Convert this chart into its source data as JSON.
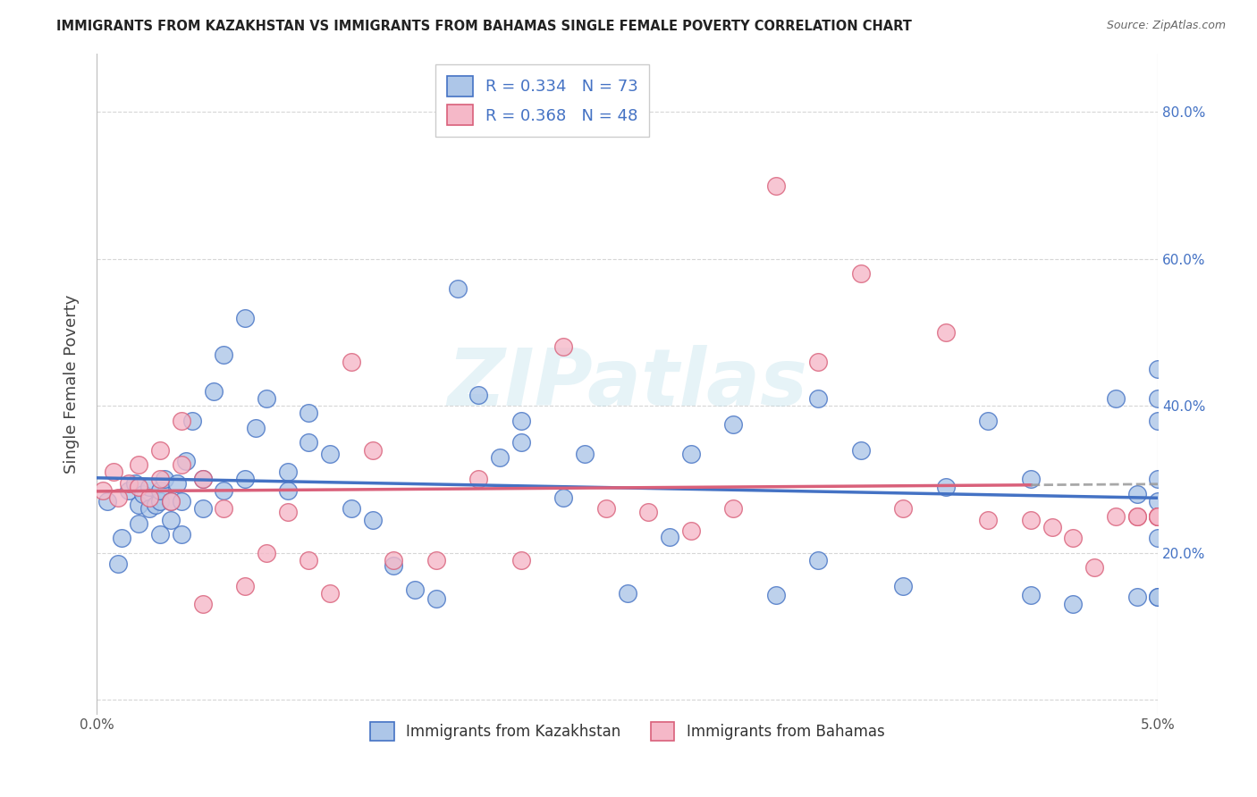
{
  "title": "IMMIGRANTS FROM KAZAKHSTAN VS IMMIGRANTS FROM BAHAMAS SINGLE FEMALE POVERTY CORRELATION CHART",
  "source": "Source: ZipAtlas.com",
  "ylabel": "Single Female Poverty",
  "legend1_label": "Immigrants from Kazakhstan",
  "legend2_label": "Immigrants from Bahamas",
  "R1": "0.334",
  "N1": "73",
  "R2": "0.368",
  "N2": "48",
  "color1": "#adc6e8",
  "color1_edge": "#4472c4",
  "color2": "#f5b8c8",
  "color2_edge": "#d9607a",
  "line1_color": "#4472c4",
  "line2_color": "#d9607a",
  "watermark": "ZIPatlas",
  "xlim": [
    0.0,
    0.05
  ],
  "ylim": [
    -0.02,
    0.88
  ],
  "y_ticks": [
    0.0,
    0.2,
    0.4,
    0.6,
    0.8
  ],
  "y_tick_labels_right": [
    "",
    "20.0%",
    "40.0%",
    "60.0%",
    "80.0%"
  ],
  "x_tick_labels": [
    "0.0%",
    "5.0%"
  ],
  "kazakhstan_x": [
    0.0005,
    0.001,
    0.0012,
    0.0015,
    0.0018,
    0.002,
    0.002,
    0.0022,
    0.0025,
    0.0025,
    0.0028,
    0.003,
    0.003,
    0.003,
    0.0032,
    0.0035,
    0.0035,
    0.0038,
    0.004,
    0.004,
    0.0042,
    0.0045,
    0.005,
    0.005,
    0.0055,
    0.006,
    0.006,
    0.007,
    0.007,
    0.0075,
    0.008,
    0.009,
    0.009,
    0.01,
    0.01,
    0.011,
    0.012,
    0.013,
    0.014,
    0.015,
    0.016,
    0.017,
    0.018,
    0.019,
    0.02,
    0.02,
    0.022,
    0.023,
    0.025,
    0.027,
    0.028,
    0.03,
    0.032,
    0.034,
    0.034,
    0.036,
    0.038,
    0.04,
    0.042,
    0.044,
    0.044,
    0.046,
    0.048,
    0.049,
    0.049,
    0.05,
    0.05,
    0.05,
    0.05,
    0.05,
    0.05,
    0.05,
    0.05
  ],
  "kazakhstan_y": [
    0.27,
    0.185,
    0.22,
    0.285,
    0.295,
    0.24,
    0.265,
    0.28,
    0.26,
    0.29,
    0.265,
    0.225,
    0.27,
    0.285,
    0.3,
    0.245,
    0.27,
    0.295,
    0.225,
    0.27,
    0.325,
    0.38,
    0.26,
    0.3,
    0.42,
    0.285,
    0.47,
    0.52,
    0.3,
    0.37,
    0.41,
    0.285,
    0.31,
    0.35,
    0.39,
    0.335,
    0.26,
    0.245,
    0.183,
    0.15,
    0.138,
    0.56,
    0.415,
    0.33,
    0.35,
    0.38,
    0.275,
    0.335,
    0.145,
    0.222,
    0.335,
    0.375,
    0.142,
    0.41,
    0.19,
    0.34,
    0.155,
    0.29,
    0.38,
    0.3,
    0.142,
    0.13,
    0.41,
    0.14,
    0.28,
    0.38,
    0.3,
    0.14,
    0.14,
    0.45,
    0.41,
    0.22,
    0.27
  ],
  "bahamas_x": [
    0.0003,
    0.0008,
    0.001,
    0.0015,
    0.002,
    0.002,
    0.0025,
    0.003,
    0.003,
    0.0035,
    0.004,
    0.004,
    0.005,
    0.005,
    0.006,
    0.007,
    0.008,
    0.009,
    0.01,
    0.011,
    0.012,
    0.013,
    0.014,
    0.016,
    0.018,
    0.02,
    0.022,
    0.024,
    0.026,
    0.028,
    0.03,
    0.032,
    0.034,
    0.036,
    0.038,
    0.04,
    0.042,
    0.044,
    0.045,
    0.046,
    0.047,
    0.048,
    0.049,
    0.049,
    0.05,
    0.05,
    0.05,
    0.05
  ],
  "bahamas_y": [
    0.285,
    0.31,
    0.275,
    0.295,
    0.29,
    0.32,
    0.275,
    0.3,
    0.34,
    0.27,
    0.32,
    0.38,
    0.3,
    0.13,
    0.26,
    0.155,
    0.2,
    0.255,
    0.19,
    0.145,
    0.46,
    0.34,
    0.19,
    0.19,
    0.3,
    0.19,
    0.48,
    0.26,
    0.255,
    0.23,
    0.26,
    0.7,
    0.46,
    0.58,
    0.26,
    0.5,
    0.245,
    0.245,
    0.235,
    0.22,
    0.18,
    0.25,
    0.25,
    0.25,
    0.25,
    0.25,
    0.25,
    0.25
  ]
}
